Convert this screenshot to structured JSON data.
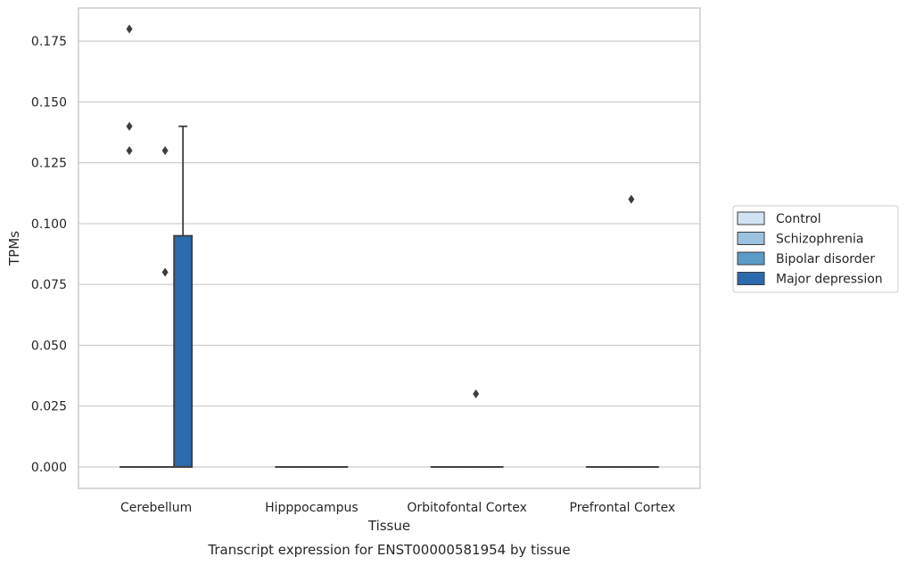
{
  "chart_data": {
    "type": "box",
    "title": "Transcript expression for ENST00000581954 by tissue",
    "xlabel": "Tissue",
    "ylabel": "TPMs",
    "ylim": [
      -0.0088,
      0.1886
    ],
    "yticks": [
      0.0,
      0.025,
      0.05,
      0.075,
      0.1,
      0.125,
      0.15,
      0.175
    ],
    "ytick_labels": [
      "0.000",
      "0.025",
      "0.050",
      "0.075",
      "0.100",
      "0.125",
      "0.150",
      "0.175"
    ],
    "grid": "horizontal",
    "legend_position": "right",
    "categories": [
      "Cerebellum",
      "Hipppocampus",
      "Orbitofontal Cortex",
      "Prefrontal Cortex"
    ],
    "series": [
      {
        "name": "Control",
        "color": "#d1e2f2",
        "boxes": [
          {
            "q1": 0,
            "median": 0,
            "q3": 0,
            "whisker_low": 0,
            "whisker_high": 0,
            "outliers": [
              0.18,
              0.14,
              0.13
            ]
          },
          {
            "q1": 0,
            "median": 0,
            "q3": 0,
            "whisker_low": 0,
            "whisker_high": 0,
            "outliers": []
          },
          {
            "q1": 0,
            "median": 0,
            "q3": 0,
            "whisker_low": 0,
            "whisker_high": 0,
            "outliers": []
          },
          {
            "q1": 0,
            "median": 0,
            "q3": 0,
            "whisker_low": 0,
            "whisker_high": 0,
            "outliers": []
          }
        ]
      },
      {
        "name": "Schizophrenia",
        "color": "#9ac1de",
        "boxes": [
          {
            "q1": 0,
            "median": 0,
            "q3": 0,
            "whisker_low": 0,
            "whisker_high": 0,
            "outliers": []
          },
          {
            "q1": 0,
            "median": 0,
            "q3": 0,
            "whisker_low": 0,
            "whisker_high": 0,
            "outliers": []
          },
          {
            "q1": 0,
            "median": 0,
            "q3": 0,
            "whisker_low": 0,
            "whisker_high": 0,
            "outliers": []
          },
          {
            "q1": 0,
            "median": 0,
            "q3": 0,
            "whisker_low": 0,
            "whisker_high": 0,
            "outliers": []
          }
        ]
      },
      {
        "name": "Bipolar disorder",
        "color": "#5a9bc8",
        "boxes": [
          {
            "q1": 0,
            "median": 0,
            "q3": 0,
            "whisker_low": 0,
            "whisker_high": 0,
            "outliers": [
              0.13,
              0.08
            ]
          },
          {
            "q1": 0,
            "median": 0,
            "q3": 0,
            "whisker_low": 0,
            "whisker_high": 0,
            "outliers": []
          },
          {
            "q1": 0,
            "median": 0,
            "q3": 0,
            "whisker_low": 0,
            "whisker_high": 0,
            "outliers": [
              0.03
            ]
          },
          {
            "q1": 0,
            "median": 0,
            "q3": 0,
            "whisker_low": 0,
            "whisker_high": 0,
            "outliers": [
              0.11
            ]
          }
        ]
      },
      {
        "name": "Major depression",
        "color": "#2a6aad",
        "boxes": [
          {
            "q1": 0,
            "median": 0,
            "q3": 0.095,
            "whisker_low": 0,
            "whisker_high": 0.14,
            "outliers": []
          },
          {
            "q1": 0,
            "median": 0,
            "q3": 0,
            "whisker_low": 0,
            "whisker_high": 0,
            "outliers": []
          },
          {
            "q1": 0,
            "median": 0,
            "q3": 0,
            "whisker_low": 0,
            "whisker_high": 0,
            "outliers": []
          },
          {
            "q1": 0,
            "median": 0,
            "q3": 0,
            "whisker_low": 0,
            "whisker_high": 0,
            "outliers": []
          }
        ]
      }
    ]
  }
}
